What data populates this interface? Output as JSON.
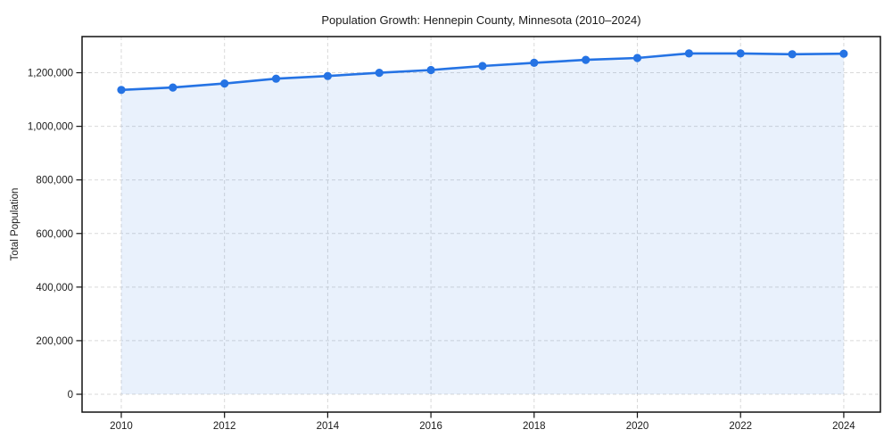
{
  "figure": {
    "background": "#FFFFFF"
  },
  "chart_data": {
    "type": "area",
    "title": "Population Growth: Hennepin County, Minnesota (2010–2024)",
    "xlabel": "",
    "ylabel": "Total Population",
    "x": [
      2010,
      2011,
      2012,
      2013,
      2014,
      2015,
      2016,
      2017,
      2018,
      2019,
      2020,
      2021,
      2022,
      2023,
      2024
    ],
    "series": [
      {
        "name": "Total Population",
        "values": [
          1136000,
          1145000,
          1160000,
          1178000,
          1188000,
          1200000,
          1210000,
          1225000,
          1237000,
          1248000,
          1255000,
          1272000,
          1272000,
          1269000,
          1271000
        ]
      }
    ],
    "xticks": [
      2010,
      2012,
      2014,
      2016,
      2018,
      2020,
      2022,
      2024
    ],
    "yticks": [
      0,
      200000,
      400000,
      600000,
      800000,
      1000000,
      1200000
    ],
    "xlim": [
      2009.24,
      2024.71
    ],
    "ylim": [
      0,
      1335000
    ],
    "grid": true,
    "grid_style": "dashed",
    "legend": "none",
    "marker": "circle",
    "colors": {
      "line": "#2573E4",
      "marker": "#2573E4",
      "fill": "#2573E4",
      "fill_opacity": 0.1,
      "grid": "#D9D9D9",
      "spine": "#111111",
      "text": "#1A1A1A"
    }
  }
}
